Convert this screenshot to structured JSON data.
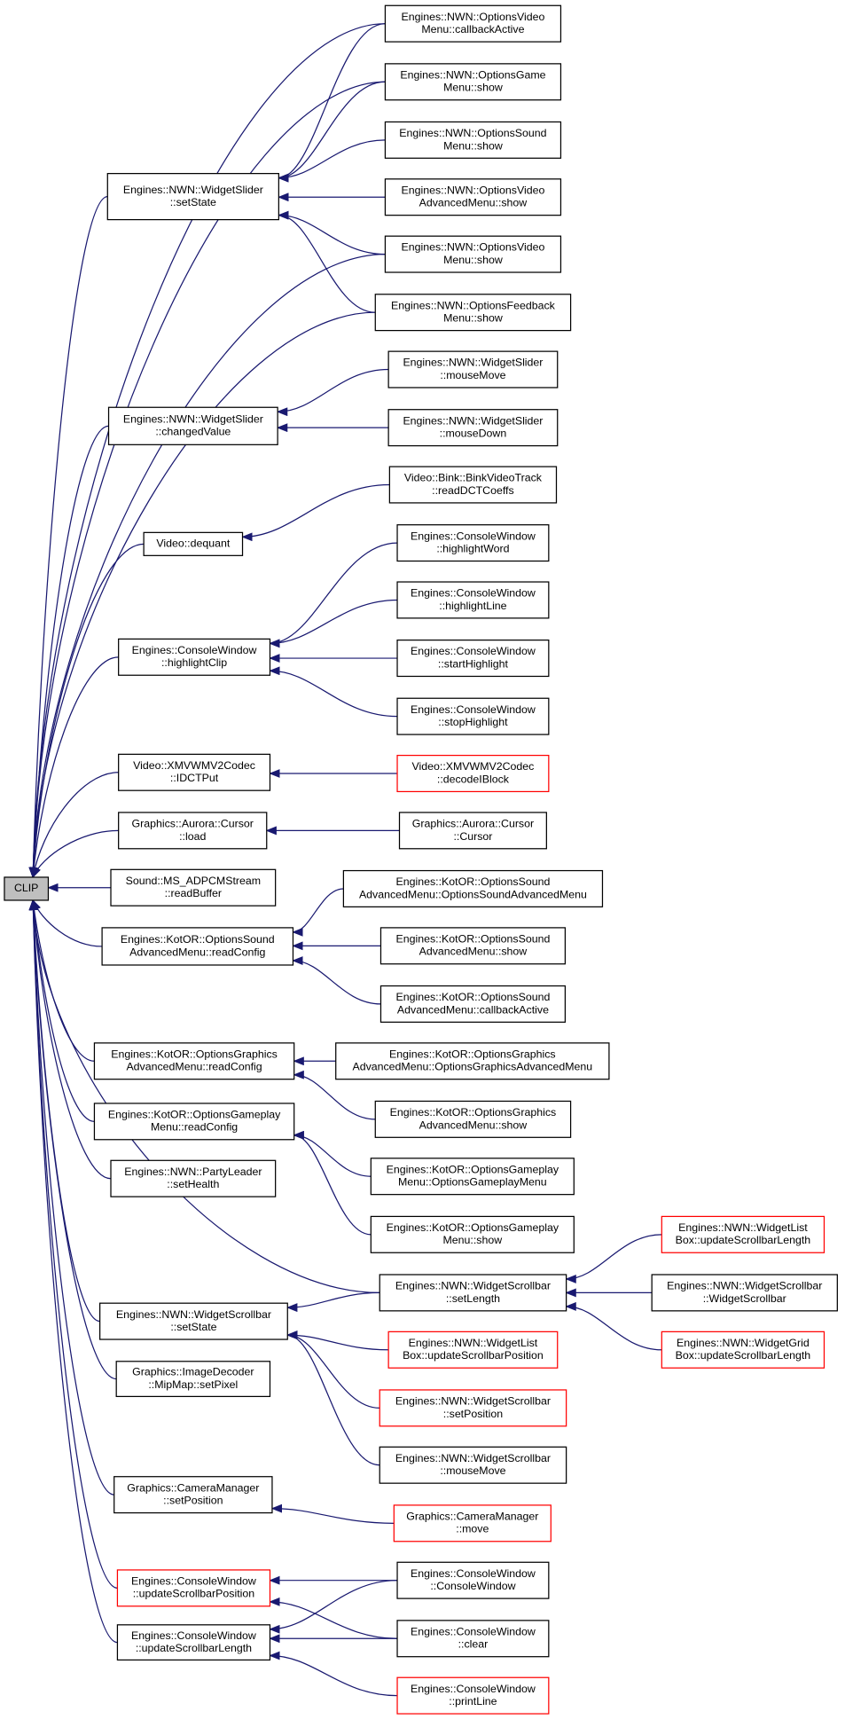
{
  "nodes": [
    {
      "lines": [
        "CLIP"
      ],
      "border": "#000000",
      "fill": "#bfbfbf"
    },
    {
      "lines": [
        "Engines::NWN::WidgetSlider",
        "::setState"
      ],
      "border": "#000000"
    },
    {
      "lines": [
        "Engines::NWN::WidgetSlider",
        "::changedValue"
      ],
      "border": "#000000"
    },
    {
      "lines": [
        "Video::dequant"
      ],
      "border": "#000000"
    },
    {
      "lines": [
        "Engines::ConsoleWindow",
        "::highlightClip"
      ],
      "border": "#000000"
    },
    {
      "lines": [
        "Video::XMVWMV2Codec",
        "::IDCTPut"
      ],
      "border": "#000000"
    },
    {
      "lines": [
        "Graphics::Aurora::Cursor",
        "::load"
      ],
      "border": "#000000"
    },
    {
      "lines": [
        "Sound::MS_ADPCMStream",
        "::readBuffer"
      ],
      "border": "#000000"
    },
    {
      "lines": [
        "Engines::KotOR::OptionsSound",
        "AdvancedMenu::readConfig"
      ],
      "border": "#000000"
    },
    {
      "lines": [
        "Engines::KotOR::OptionsGraphics",
        "AdvancedMenu::readConfig"
      ],
      "border": "#000000"
    },
    {
      "lines": [
        "Engines::KotOR::OptionsGameplay",
        "Menu::readConfig"
      ],
      "border": "#000000"
    },
    {
      "lines": [
        "Engines::NWN::PartyLeader",
        "::setHealth"
      ],
      "border": "#000000"
    },
    {
      "lines": [
        "Engines::NWN::WidgetScrollbar",
        "::setState"
      ],
      "border": "#000000"
    },
    {
      "lines": [
        "Graphics::ImageDecoder",
        "::MipMap::setPixel"
      ],
      "border": "#000000"
    },
    {
      "lines": [
        "Graphics::CameraManager",
        "::setPosition"
      ],
      "border": "#000000"
    },
    {
      "lines": [
        "Engines::ConsoleWindow",
        "::updateScrollbarPosition"
      ],
      "border": "#ff0000"
    },
    {
      "lines": [
        "Engines::ConsoleWindow",
        "::updateScrollbarLength"
      ],
      "border": "#000000"
    },
    {
      "lines": [
        "Engines::NWN::OptionsVideo",
        "Menu::callbackActive"
      ],
      "border": "#000000"
    },
    {
      "lines": [
        "Engines::NWN::OptionsGame",
        "Menu::show"
      ],
      "border": "#000000"
    },
    {
      "lines": [
        "Engines::NWN::OptionsSound",
        "Menu::show"
      ],
      "border": "#000000"
    },
    {
      "lines": [
        "Engines::NWN::OptionsVideo",
        "AdvancedMenu::show"
      ],
      "border": "#000000"
    },
    {
      "lines": [
        "Engines::NWN::OptionsVideo",
        "Menu::show"
      ],
      "border": "#000000"
    },
    {
      "lines": [
        "Engines::NWN::OptionsFeedback",
        "Menu::show"
      ],
      "border": "#000000"
    },
    {
      "lines": [
        "Engines::NWN::WidgetSlider",
        "::mouseMove"
      ],
      "border": "#000000"
    },
    {
      "lines": [
        "Engines::NWN::WidgetSlider",
        "::mouseDown"
      ],
      "border": "#000000"
    },
    {
      "lines": [
        "Video::Bink::BinkVideoTrack",
        "::readDCTCoeffs"
      ],
      "border": "#000000"
    },
    {
      "lines": [
        "Engines::ConsoleWindow",
        "::highlightWord"
      ],
      "border": "#000000"
    },
    {
      "lines": [
        "Engines::ConsoleWindow",
        "::highlightLine"
      ],
      "border": "#000000"
    },
    {
      "lines": [
        "Engines::ConsoleWindow",
        "::startHighlight"
      ],
      "border": "#000000"
    },
    {
      "lines": [
        "Engines::ConsoleWindow",
        "::stopHighlight"
      ],
      "border": "#000000"
    },
    {
      "lines": [
        "Video::XMVWMV2Codec",
        "::decodeIBlock"
      ],
      "border": "#ff0000"
    },
    {
      "lines": [
        "Graphics::Aurora::Cursor",
        "::Cursor"
      ],
      "border": "#000000"
    },
    {
      "lines": [
        "Engines::KotOR::OptionsSound",
        "AdvancedMenu::OptionsSoundAdvancedMenu"
      ],
      "border": "#000000"
    },
    {
      "lines": [
        "Engines::KotOR::OptionsSound",
        "AdvancedMenu::show"
      ],
      "border": "#000000"
    },
    {
      "lines": [
        "Engines::KotOR::OptionsSound",
        "AdvancedMenu::callbackActive"
      ],
      "border": "#000000"
    },
    {
      "lines": [
        "Engines::KotOR::OptionsGraphics",
        "AdvancedMenu::OptionsGraphicsAdvancedMenu"
      ],
      "border": "#000000"
    },
    {
      "lines": [
        "Engines::KotOR::OptionsGraphics",
        "AdvancedMenu::show"
      ],
      "border": "#000000"
    },
    {
      "lines": [
        "Engines::KotOR::OptionsGameplay",
        "Menu::OptionsGameplayMenu"
      ],
      "border": "#000000"
    },
    {
      "lines": [
        "Engines::KotOR::OptionsGameplay",
        "Menu::show"
      ],
      "border": "#000000"
    },
    {
      "lines": [
        "Engines::NWN::WidgetScrollbar",
        "::setLength"
      ],
      "border": "#000000"
    },
    {
      "lines": [
        "Engines::NWN::WidgetList",
        "Box::updateScrollbarPosition"
      ],
      "border": "#ff0000"
    },
    {
      "lines": [
        "Engines::NWN::WidgetScrollbar",
        "::setPosition"
      ],
      "border": "#ff0000"
    },
    {
      "lines": [
        "Engines::NWN::WidgetScrollbar",
        "::mouseMove"
      ],
      "border": "#000000"
    },
    {
      "lines": [
        "Graphics::CameraManager",
        "::move"
      ],
      "border": "#ff0000"
    },
    {
      "lines": [
        "Engines::ConsoleWindow",
        "::ConsoleWindow"
      ],
      "border": "#000000"
    },
    {
      "lines": [
        "Engines::ConsoleWindow",
        "::clear"
      ],
      "border": "#000000"
    },
    {
      "lines": [
        "Engines::ConsoleWindow",
        "::printLine"
      ],
      "border": "#ff0000"
    },
    {
      "lines": [
        "Engines::NWN::WidgetList",
        "Box::updateScrollbarLength"
      ],
      "border": "#ff0000"
    },
    {
      "lines": [
        "Engines::NWN::WidgetScrollbar",
        "::WidgetScrollbar"
      ],
      "border": "#000000"
    },
    {
      "lines": [
        "Engines::NWN::WidgetGrid",
        "Box::updateScrollbarLength"
      ],
      "border": "#ff0000"
    }
  ],
  "edge_color": "#191970"
}
